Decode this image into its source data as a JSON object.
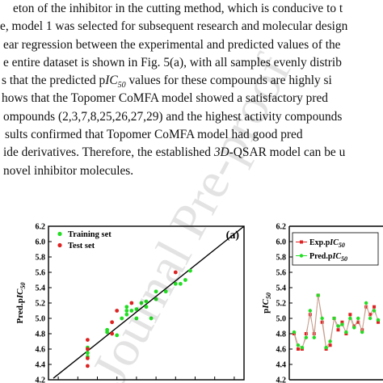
{
  "paragraph_lines": [
    "eton of the inhibitor in the cutting method, which is conducive to t",
    "e, model 1 was selected for subsequent research and molecular design",
    "ear regression between the experimental and predicted values of the",
    "e entire dataset is shown in Fig. 5(a), with all samples evenly distrib",
    "s that the predicted pIC50 values for these compounds are highly si",
    "hows that the Topomer CoMFA model showed a satisfactory pred",
    "ompounds (2,3,7,8,25,26,27,29) and the highest activity compounds",
    "sults confirmed that Topomer CoMFA model had good pred",
    "ide derivatives. Therefore, the established 3D-QSAR model can be u",
    "novel inhibitor molecules."
  ],
  "watermark_text": "Journal Pre-proof",
  "colors": {
    "training": "#22dd22",
    "test": "#dd2222",
    "exp": "#dd2222",
    "pred": "#22dd22",
    "line": "#000000"
  },
  "chart_data": [
    {
      "type": "scatter",
      "panel_label": "(a)",
      "ylabel_main": "Pred.p",
      "ylabel_ital": "IC",
      "ylabel_sub": "50",
      "xlim": [
        4.2,
        6.2
      ],
      "ylim": [
        4.2,
        6.2
      ],
      "yticks": [
        "4.2",
        "4.4",
        "4.6",
        "4.8",
        "5.0",
        "5.2",
        "5.4",
        "5.6",
        "5.8",
        "6.0",
        "6.2"
      ],
      "legend_placement": "top-left",
      "series": [
        {
          "name": "Training set",
          "points": [
            [
              4.6,
              4.62
            ],
            [
              4.6,
              4.55
            ],
            [
              4.6,
              4.5
            ],
            [
              4.8,
              4.82
            ],
            [
              4.8,
              4.85
            ],
            [
              4.9,
              4.78
            ],
            [
              4.95,
              5.0
            ],
            [
              5.0,
              5.05
            ],
            [
              5.0,
              5.1
            ],
            [
              5.0,
              5.15
            ],
            [
              5.05,
              5.1
            ],
            [
              5.1,
              5.12
            ],
            [
              5.15,
              5.2
            ],
            [
              5.2,
              5.15
            ],
            [
              5.25,
              5.0
            ],
            [
              5.3,
              5.35
            ],
            [
              5.4,
              5.35
            ],
            [
              5.5,
              5.45
            ],
            [
              5.6,
              5.5
            ],
            [
              5.65,
              5.62
            ],
            [
              5.55,
              5.45
            ],
            [
              5.1,
              5.0
            ],
            [
              5.2,
              5.22
            ],
            [
              5.3,
              5.25
            ]
          ]
        },
        {
          "name": "Test set",
          "points": [
            [
              4.6,
              4.72
            ],
            [
              4.6,
              4.6
            ],
            [
              4.6,
              4.48
            ],
            [
              4.6,
              4.38
            ],
            [
              4.85,
              4.8
            ],
            [
              4.9,
              5.1
            ],
            [
              5.05,
              5.2
            ],
            [
              5.5,
              5.6
            ],
            [
              4.85,
              4.95
            ]
          ]
        }
      ]
    },
    {
      "type": "line",
      "ylabel_main": "p",
      "ylabel_ital": "IC",
      "ylabel_sub": "50",
      "ylim": [
        4.2,
        6.2
      ],
      "yticks": [
        "4.2",
        "4.4",
        "4.6",
        "4.8",
        "5.0",
        "5.2",
        "5.4",
        "5.6",
        "5.8",
        "6.0",
        "6.2"
      ],
      "legend_placement": "top-left",
      "series": [
        {
          "name": "Exp.p",
          "name_ital": "IC",
          "name_sub": "50",
          "values": [
            4.8,
            4.6,
            4.6,
            4.8,
            5.05,
            4.8,
            5.3,
            4.95,
            4.6,
            4.65,
            5.0,
            4.85,
            4.95,
            4.8,
            5.05,
            4.9,
            4.95,
            4.85,
            5.15,
            5.05,
            5.15,
            4.95
          ]
        },
        {
          "name": "Pred.p",
          "name_ital": "IC",
          "name_sub": "50",
          "values": [
            4.82,
            4.65,
            4.62,
            4.75,
            5.1,
            4.75,
            5.3,
            5.0,
            4.62,
            4.7,
            5.0,
            4.9,
            4.92,
            4.82,
            5.0,
            4.88,
            5.0,
            4.82,
            5.2,
            5.0,
            5.1,
            4.98
          ]
        }
      ]
    }
  ]
}
